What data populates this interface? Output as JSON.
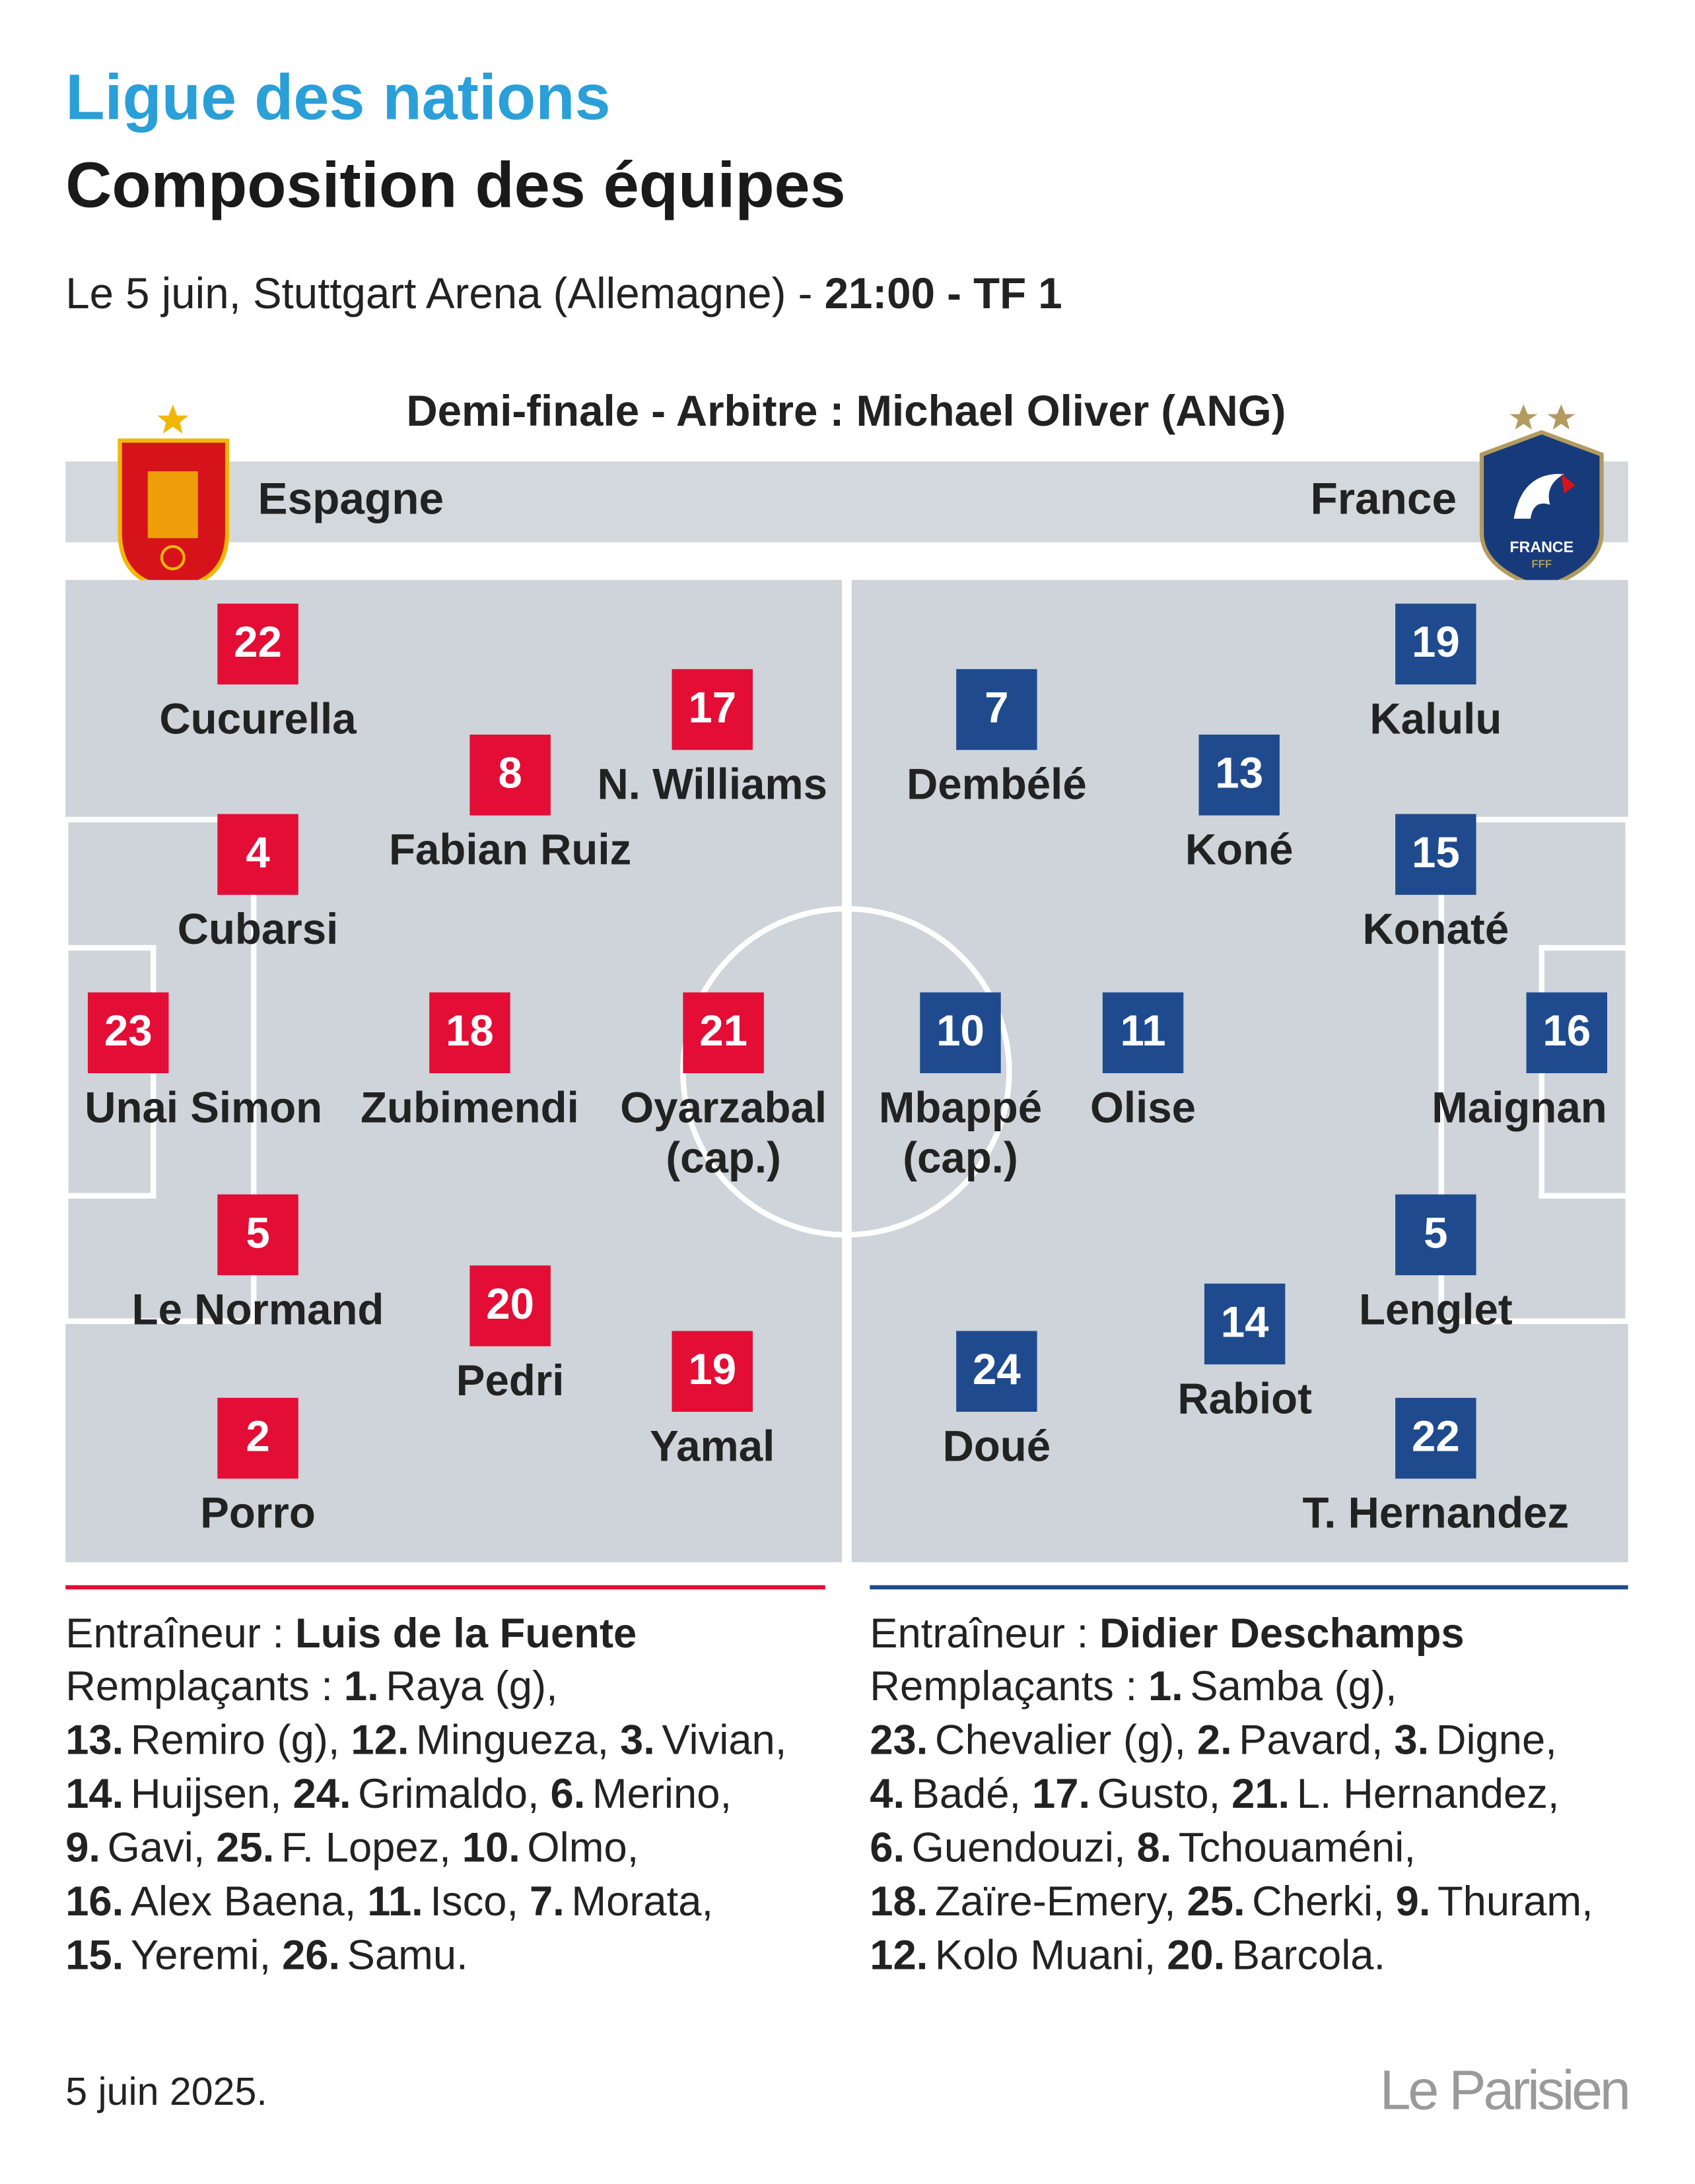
{
  "header": {
    "kicker": "Ligue des nations",
    "title": "Composition des équipes",
    "subtitle": {
      "text": "Le 5 juin, Stuttgart Arena (Allemagne) - ",
      "bold": "21:00 - TF 1"
    },
    "match": "Demi-finale - Arbitre : Michael Oliver (ANG)"
  },
  "teams": [
    {
      "name": "Espagne",
      "players": [
        {
          "number": "22",
          "name": "Cucurella"
        },
        {
          "number": "17",
          "name": "N. Williams"
        },
        {
          "number": "8",
          "name": "Fabian Ruiz"
        },
        {
          "number": "4",
          "name": "Cubarsi"
        },
        {
          "number": "23",
          "name": "Unai Simon"
        },
        {
          "number": "18",
          "name": "Zubimendi"
        },
        {
          "number": "21",
          "name": "Oyarzabal",
          "captain": "(cap.)"
        },
        {
          "number": "5",
          "name": "Le Normand"
        },
        {
          "number": "20",
          "name": "Pedri"
        },
        {
          "number": "19",
          "name": "Yamal"
        },
        {
          "number": "2",
          "name": "Porro"
        }
      ],
      "coach": {
        "label": "Entraîneur :",
        "name": "Luis de la Fuente"
      },
      "substitutes": {
        "label": "Remplaçants :",
        "players": [
          {
            "number": "1.",
            "name": "Raya (g),"
          },
          {
            "number": "13.",
            "name": "Remiro (g),"
          },
          {
            "number": "12.",
            "name": "Mingueza,"
          },
          {
            "number": "3.",
            "name": "Vivian,"
          },
          {
            "number": "14.",
            "name": "Huijsen,"
          },
          {
            "number": "24.",
            "name": "Grimaldo,"
          },
          {
            "number": "6.",
            "name": "Merino,"
          },
          {
            "number": "9.",
            "name": "Gavi,"
          },
          {
            "number": "25.",
            "name": "F. Lopez,"
          },
          {
            "number": "10.",
            "name": "Olmo,"
          },
          {
            "number": "16.",
            "name": "Alex Baena,"
          },
          {
            "number": "11.",
            "name": "Isco,"
          },
          {
            "number": "7.",
            "name": "Morata,"
          },
          {
            "number": "15.",
            "name": "Yeremi,"
          },
          {
            "number": "26.",
            "name": "Samu."
          }
        ]
      }
    },
    {
      "name": "France",
      "badge": {
        "text": "FRANCE",
        "sub": "FFF"
      },
      "players": [
        {
          "number": "19",
          "name": "Kalulu"
        },
        {
          "number": "7",
          "name": "Dembélé"
        },
        {
          "number": "13",
          "name": "Koné"
        },
        {
          "number": "15",
          "name": "Konaté"
        },
        {
          "number": "10",
          "name": "Mbappé",
          "captain": "(cap.)"
        },
        {
          "number": "11",
          "name": "Olise"
        },
        {
          "number": "16",
          "name": "Maignan"
        },
        {
          "number": "5",
          "name": "Lenglet"
        },
        {
          "number": "14",
          "name": "Rabiot"
        },
        {
          "number": "24",
          "name": "Doué"
        },
        {
          "number": "22",
          "name": "T. Hernandez"
        }
      ],
      "coach": {
        "label": "Entraîneur :",
        "name": "Didier Deschamps"
      },
      "substitutes": {
        "label": "Remplaçants :",
        "players": [
          {
            "number": "1.",
            "name": "Samba (g),"
          },
          {
            "number": "23.",
            "name": "Chevalier (g),"
          },
          {
            "number": "2.",
            "name": "Pavard,"
          },
          {
            "number": "3.",
            "name": "Digne,"
          },
          {
            "number": "4.",
            "name": "Badé,"
          },
          {
            "number": "17.",
            "name": "Gusto,"
          },
          {
            "number": "21.",
            "name": "L. Hernandez,"
          },
          {
            "number": "6.",
            "name": "Guendouzi,"
          },
          {
            "number": "8.",
            "name": "Tchouaméni,"
          },
          {
            "number": "18.",
            "name": "Zaïre-Emery,"
          },
          {
            "number": "25.",
            "name": "Cherki,"
          },
          {
            "number": "9.",
            "name": "Thuram,"
          },
          {
            "number": "12.",
            "name": "Kolo Muani,"
          },
          {
            "number": "20.",
            "name": "Barcola."
          }
        ]
      }
    }
  ],
  "footer": {
    "date": "5 juin 2025.",
    "logo": "Le Parisien"
  }
}
